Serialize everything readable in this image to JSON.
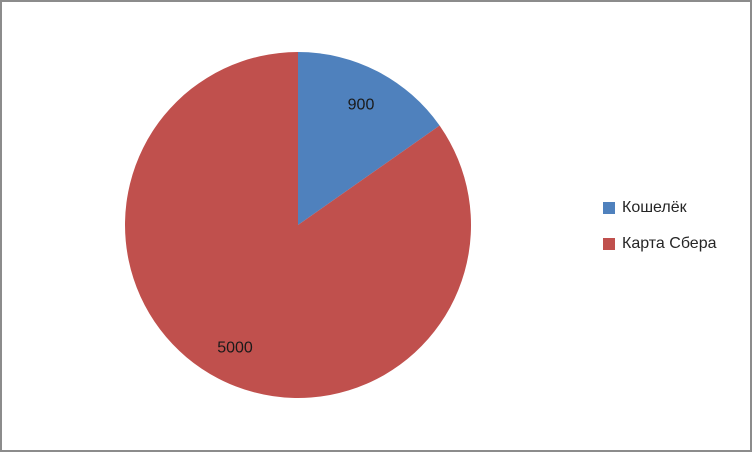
{
  "chart_data": {
    "type": "pie",
    "categories": [
      "Кошелёк",
      "Карта Сбера"
    ],
    "values": [
      900,
      5000
    ],
    "data_labels": [
      "900",
      "5000"
    ],
    "slice_colors": [
      "#4F81BD",
      "#C0504D"
    ],
    "title": "",
    "legend_position": "right",
    "start_angle_deg": 0,
    "direction": "clockwise",
    "background": "#FFFFFF",
    "frame_border_color": "#8C8C8C"
  },
  "legend": {
    "items": [
      {
        "label": "Кошелёк",
        "color": "#4F81BD"
      },
      {
        "label": "Карта Сбера",
        "color": "#C0504D"
      }
    ]
  }
}
